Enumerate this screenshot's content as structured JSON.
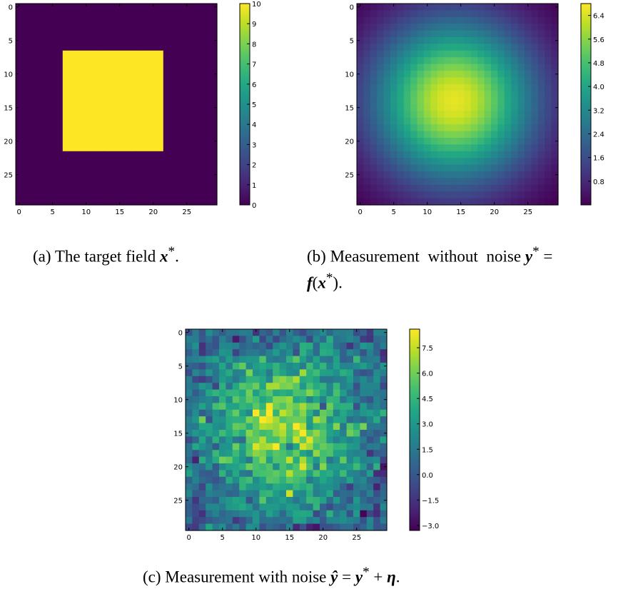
{
  "chart_data": [
    {
      "id": "a",
      "type": "heatmap",
      "grid_size": 30,
      "field": "square",
      "square_rows": [
        7,
        21
      ],
      "square_cols": [
        7,
        21
      ],
      "inside_value": 10,
      "outside_value": 0,
      "xticks": [
        0,
        5,
        10,
        15,
        20,
        25
      ],
      "yticks": [
        0,
        5,
        10,
        15,
        20,
        25
      ],
      "colorbar": {
        "min": 0,
        "max": 10,
        "ticks": [
          0,
          1,
          2,
          3,
          4,
          5,
          6,
          7,
          8,
          9,
          10
        ]
      },
      "colormap": "viridis"
    },
    {
      "id": "b",
      "type": "heatmap",
      "grid_size": 30,
      "field": "blurred",
      "center": [
        14,
        14
      ],
      "peak_value": 6.8,
      "min_value": 0,
      "xticks": [
        0,
        5,
        10,
        15,
        20,
        25
      ],
      "yticks": [
        0,
        5,
        10,
        15,
        20,
        25
      ],
      "colorbar": {
        "min": 0,
        "max": 6.8,
        "ticks": [
          0.8,
          1.6,
          2.4,
          3.2,
          4.0,
          4.8,
          5.6,
          6.4
        ]
      },
      "colormap": "viridis"
    },
    {
      "id": "c",
      "type": "heatmap",
      "grid_size": 30,
      "field": "noisy",
      "center": [
        14,
        14
      ],
      "peak_value": 6.8,
      "noise_std": 1.4,
      "xticks": [
        0,
        5,
        10,
        15,
        20,
        25
      ],
      "yticks": [
        0,
        5,
        10,
        15,
        20,
        25
      ],
      "colorbar": {
        "min": -3.3,
        "max": 8.6,
        "ticks": [
          -3.0,
          -1.5,
          0.0,
          1.5,
          3.0,
          4.5,
          6.0,
          7.5
        ]
      },
      "colormap": "viridis"
    }
  ],
  "captions": {
    "a": {
      "label": "(a)",
      "text": "The target field",
      "math": "x",
      "sup": "*",
      "end": "."
    },
    "b": {
      "label": "(b)",
      "text": "Measurement without noise",
      "math1": "y",
      "sup1": "*",
      "eq": "=",
      "math2": "f",
      "open": "(",
      "math3": "x",
      "sup3": "*",
      "close": ")."
    },
    "c": {
      "label": "(c)",
      "text": "Measurement with noise",
      "math1": "ŷ",
      "eq": "=",
      "math2": "y",
      "sup2": "*",
      "plus": "+",
      "math3": "η",
      "end": "."
    }
  }
}
